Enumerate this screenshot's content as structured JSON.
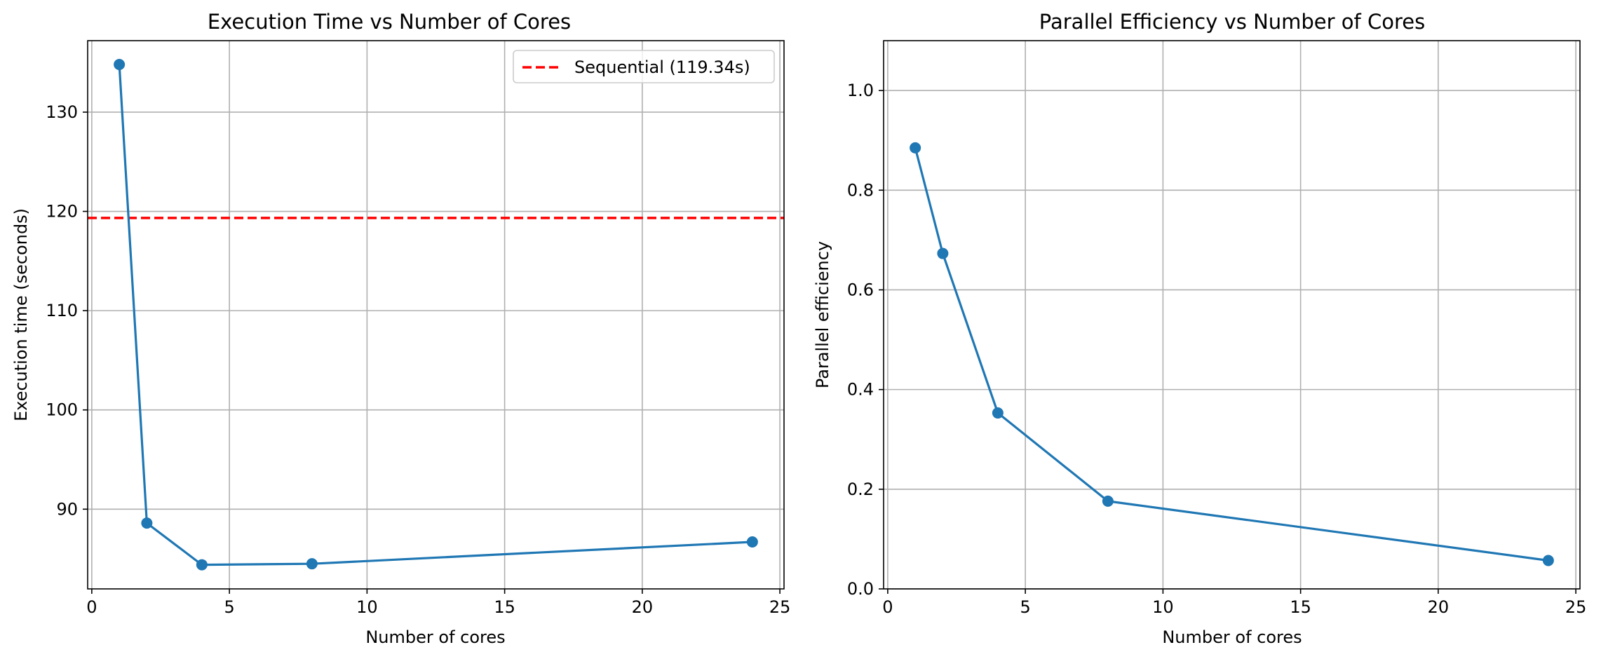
{
  "chart_data": [
    {
      "type": "line",
      "title": "Execution Time vs Number of Cores",
      "xlabel": "Number of cores",
      "ylabel": "Execution time (seconds)",
      "xlim": [
        -0.15,
        25.15
      ],
      "ylim": [
        81.97,
        137.2
      ],
      "xticks": [
        0,
        5,
        10,
        15,
        20,
        25
      ],
      "yticks": [
        90,
        100,
        110,
        120,
        130
      ],
      "grid": true,
      "legend": "top-right",
      "series": [
        {
          "x": [
            1,
            2,
            4,
            8,
            24
          ],
          "y": [
            134.8,
            88.6,
            84.4,
            84.5,
            86.7
          ],
          "color": "#1f77b4",
          "marker": "circle"
        }
      ],
      "hlines": [
        {
          "name": "Sequential (119.34s)",
          "y": 119.34,
          "color": "#ff0000",
          "style": "dashed"
        }
      ]
    },
    {
      "type": "line",
      "title": "Parallel Efficiency vs Number of Cores",
      "xlabel": "Number of cores",
      "ylabel": "Parallel efficiency",
      "xlim": [
        -0.15,
        25.15
      ],
      "ylim": [
        0,
        1.1
      ],
      "xticks": [
        0,
        5,
        10,
        15,
        20,
        25
      ],
      "yticks": [
        0.0,
        0.2,
        0.4,
        0.6,
        0.8,
        1.0
      ],
      "grid": true,
      "series": [
        {
          "x": [
            1,
            2,
            4,
            8,
            24
          ],
          "y": [
            0.885,
            0.673,
            0.353,
            0.176,
            0.057
          ],
          "color": "#1f77b4",
          "marker": "circle"
        }
      ]
    }
  ]
}
